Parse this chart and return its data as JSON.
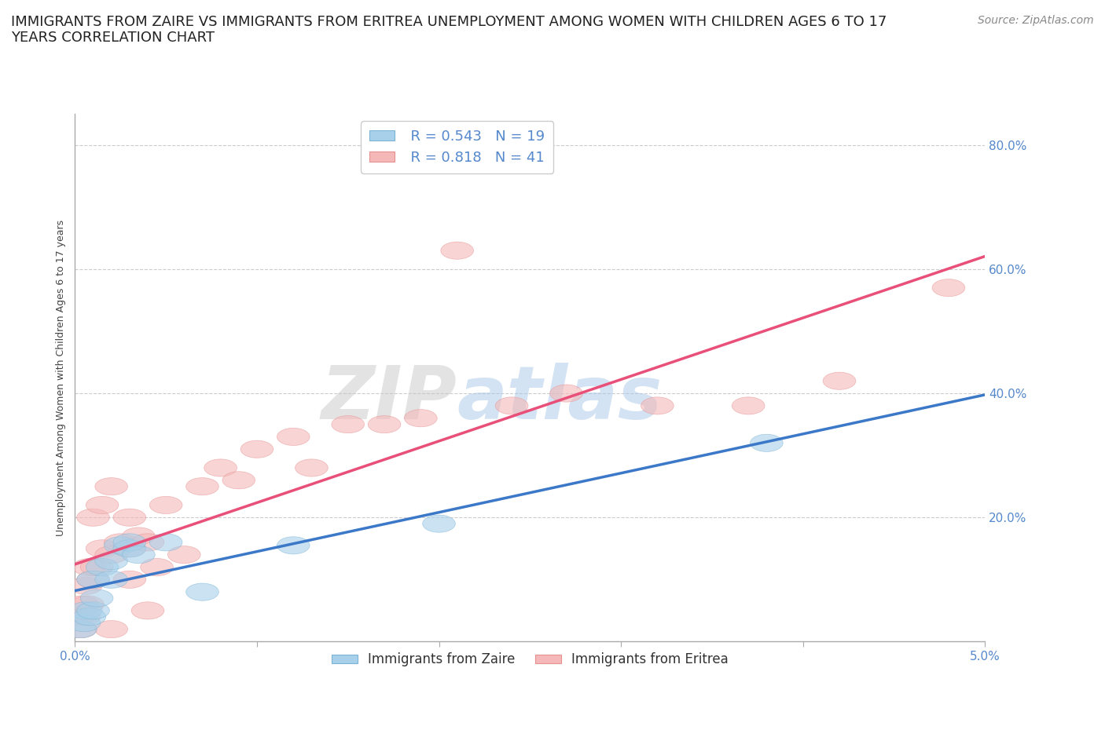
{
  "title": "IMMIGRANTS FROM ZAIRE VS IMMIGRANTS FROM ERITREA UNEMPLOYMENT AMONG WOMEN WITH CHILDREN AGES 6 TO 17\nYEARS CORRELATION CHART",
  "source_text": "Source: ZipAtlas.com",
  "ylabel": "Unemployment Among Women with Children Ages 6 to 17 years",
  "xlim": [
    0.0,
    0.05
  ],
  "ylim": [
    0.0,
    0.85
  ],
  "xticks": [
    0.0,
    0.01,
    0.02,
    0.03,
    0.04,
    0.05
  ],
  "yticks": [
    0.0,
    0.2,
    0.4,
    0.6,
    0.8
  ],
  "xtick_labels": [
    "0.0%",
    "",
    "",
    "",
    "",
    "5.0%"
  ],
  "ytick_labels": [
    "",
    "20.0%",
    "40.0%",
    "60.0%",
    "80.0%"
  ],
  "watermark_zip": "ZIP",
  "watermark_atlas": "atlas",
  "legend_r_zaire": "0.543",
  "legend_n_zaire": "19",
  "legend_r_eritrea": "0.818",
  "legend_n_eritrea": "41",
  "zaire_color": "#a8d0ea",
  "eritrea_color": "#f4b8b8",
  "zaire_edge_color": "#7ab3d4",
  "eritrea_edge_color": "#e89090",
  "zaire_line_color": "#3c78c8",
  "eritrea_line_color": "#e8507a",
  "background_color": "#ffffff",
  "grid_color": "#cccccc",
  "tick_color": "#5588cc",
  "zaire_x": [
    0.0003,
    0.0005,
    0.0006,
    0.0008,
    0.001,
    0.001,
    0.0012,
    0.0015,
    0.002,
    0.002,
    0.0025,
    0.003,
    0.003,
    0.0035,
    0.005,
    0.007,
    0.012,
    0.02,
    0.038
  ],
  "zaire_y": [
    0.02,
    0.03,
    0.05,
    0.04,
    0.05,
    0.1,
    0.07,
    0.12,
    0.1,
    0.13,
    0.155,
    0.15,
    0.16,
    0.14,
    0.16,
    0.08,
    0.155,
    0.19,
    0.32
  ],
  "eritrea_x": [
    0.0002,
    0.0003,
    0.0004,
    0.0005,
    0.0006,
    0.0007,
    0.0008,
    0.001,
    0.001,
    0.0012,
    0.0015,
    0.0015,
    0.002,
    0.002,
    0.002,
    0.0025,
    0.003,
    0.003,
    0.003,
    0.0035,
    0.004,
    0.004,
    0.0045,
    0.005,
    0.006,
    0.007,
    0.008,
    0.009,
    0.01,
    0.012,
    0.013,
    0.015,
    0.017,
    0.019,
    0.021,
    0.024,
    0.027,
    0.032,
    0.037,
    0.042,
    0.048
  ],
  "eritrea_y": [
    0.04,
    0.02,
    0.06,
    0.04,
    0.09,
    0.06,
    0.12,
    0.1,
    0.2,
    0.12,
    0.15,
    0.22,
    0.02,
    0.14,
    0.25,
    0.16,
    0.1,
    0.15,
    0.2,
    0.17,
    0.05,
    0.16,
    0.12,
    0.22,
    0.14,
    0.25,
    0.28,
    0.26,
    0.31,
    0.33,
    0.28,
    0.35,
    0.35,
    0.36,
    0.63,
    0.38,
    0.4,
    0.38,
    0.38,
    0.42,
    0.57
  ],
  "title_fontsize": 13,
  "axis_label_fontsize": 9,
  "tick_fontsize": 11,
  "legend_fontsize": 13,
  "source_fontsize": 10
}
